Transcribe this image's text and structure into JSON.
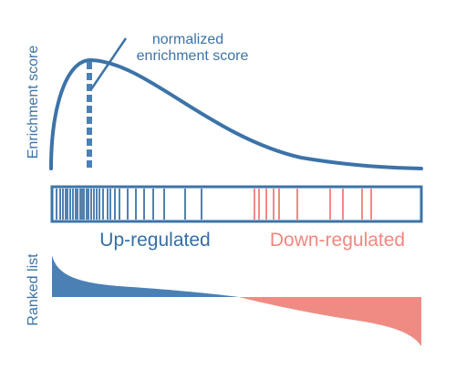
{
  "labels": {
    "enrichment_axis": "Enrichment score",
    "annotation_line1": "normalized",
    "annotation_line2": "enrichment score",
    "up_regulated": "Up-regulated",
    "down_regulated": "Down-regulated",
    "ranked_list_axis": "Ranked list"
  },
  "colors": {
    "up": "#3c73a8",
    "up_fill": "#4b80b5",
    "down": "#f08b84",
    "text_up": "#356ea6",
    "text_down": "#ef8880"
  },
  "hit_counts": {
    "up": 30,
    "down": 10
  }
}
